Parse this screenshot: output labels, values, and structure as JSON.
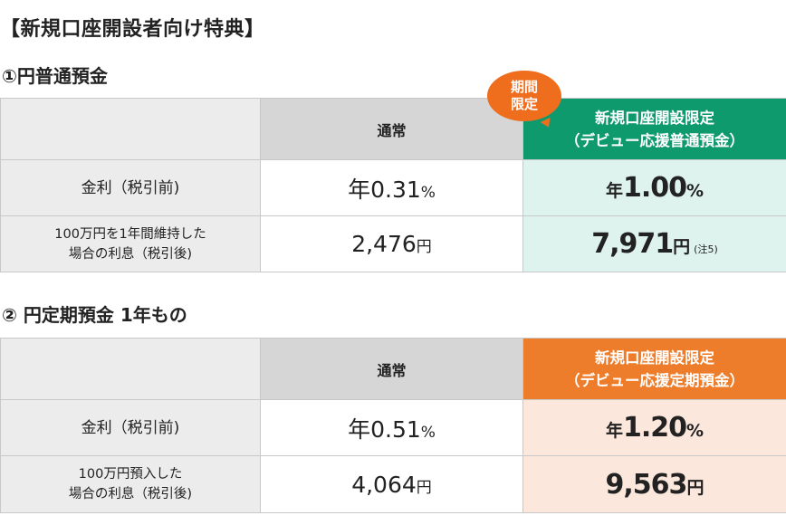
{
  "page_title": "【新規口座開設者向け特典】",
  "section1": {
    "title": "①円普通預金",
    "badge_line1": "期間",
    "badge_line2": "限定",
    "header_standard": "通常",
    "header_promo_line1": "新規口座開設限定",
    "header_promo_line2": "（デビュー応援普通預金）",
    "rate_label": "金利（税引前)",
    "rate_standard_prefix": "年",
    "rate_standard_value": "0.31",
    "rate_standard_unit": "%",
    "rate_promo_prefix": "年",
    "rate_promo_value": "1.00",
    "rate_promo_unit": "%",
    "interest_label_line1": "100万円を1年間維持した",
    "interest_label_line2": "場合の利息（税引後)",
    "interest_standard_value": "2,476",
    "interest_standard_unit": "円",
    "interest_promo_value": "7,971",
    "interest_promo_unit": "円",
    "interest_promo_note": "(注5)"
  },
  "section2": {
    "title": "②  円定期預金  1年もの",
    "header_standard": "通常",
    "header_promo_line1": "新規口座開設限定",
    "header_promo_line2": "（デビュー応援定期預金）",
    "rate_label": "金利（税引前)",
    "rate_standard_prefix": "年",
    "rate_standard_value": "0.51",
    "rate_standard_unit": "%",
    "rate_promo_prefix": "年",
    "rate_promo_value": "1.20",
    "rate_promo_unit": "%",
    "interest_label_line1": "100万円預入した",
    "interest_label_line2": "場合の利息（税引後)",
    "interest_standard_value": "4,064",
    "interest_standard_unit": "円",
    "interest_promo_value": "9,563",
    "interest_promo_unit": "円"
  },
  "colors": {
    "green_header": "#0f9a6e",
    "green_cell": "#dff3ee",
    "orange_header": "#ee7d2b",
    "orange_cell": "#fce7dc",
    "badge": "#ee6e1e",
    "label_bg": "#ececec",
    "standard_header_bg": "#d6d6d6"
  }
}
